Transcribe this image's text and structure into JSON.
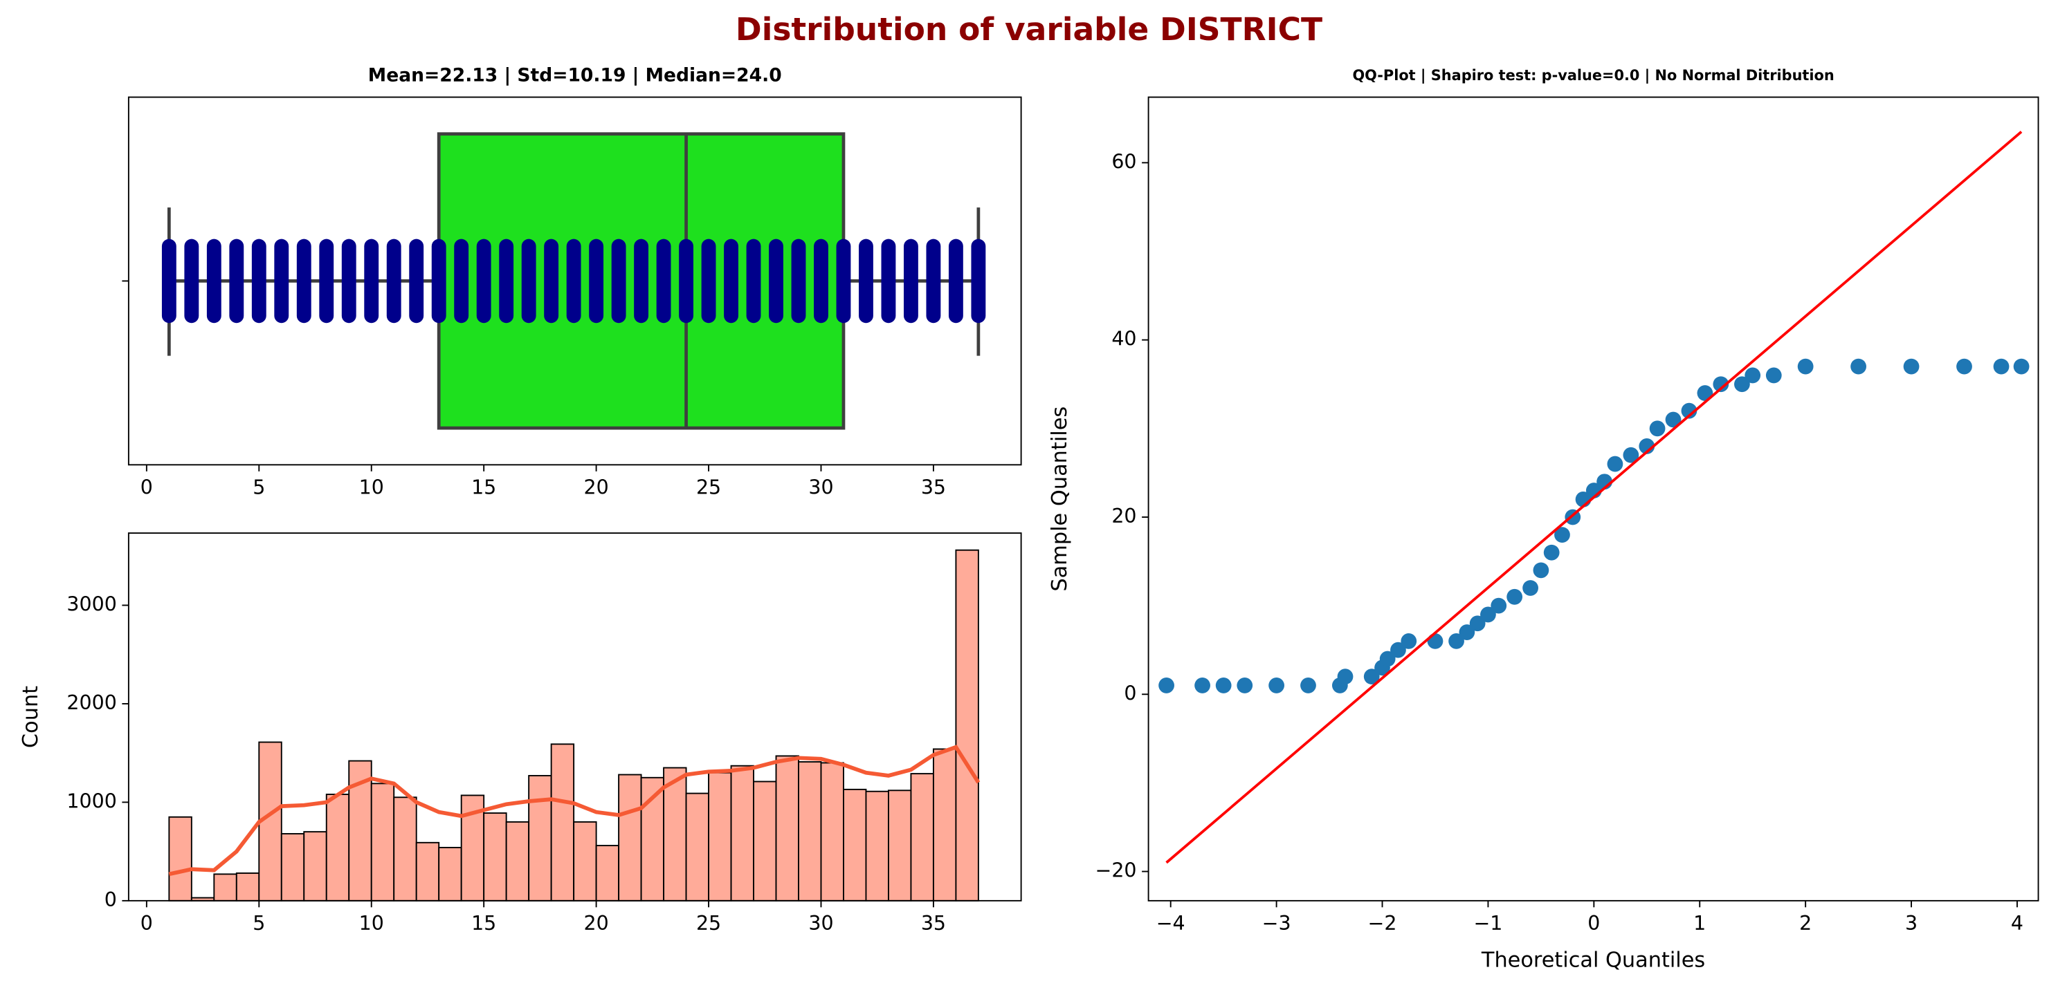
{
  "title": "Distribution of variable DISTRICT",
  "chart_data": [
    {
      "type": "box",
      "title": "Mean=22.13 | Std=10.19 | Median=24.0",
      "stats": {
        "whislo": 1,
        "q1": 13,
        "med": 24,
        "q3": 31,
        "whishi": 37
      },
      "points": [
        1,
        2,
        3,
        4,
        5,
        6,
        7,
        8,
        9,
        10,
        11,
        12,
        13,
        14,
        15,
        16,
        17,
        18,
        19,
        20,
        21,
        22,
        23,
        24,
        25,
        26,
        27,
        28,
        29,
        30,
        31,
        32,
        33,
        34,
        35,
        36,
        37
      ],
      "color": "#1ee01e",
      "point_color": "#00008b",
      "xlim": [
        -0.8,
        38.9
      ],
      "xticks": [
        0,
        5,
        10,
        15,
        20,
        25,
        30,
        35
      ]
    },
    {
      "type": "histogram",
      "y_label": "Count",
      "bins": [
        1,
        2,
        3,
        4,
        5,
        6,
        7,
        8,
        9,
        10,
        11,
        12,
        13,
        14,
        15,
        16,
        17,
        18,
        19,
        20,
        21,
        22,
        23,
        24,
        25,
        26,
        27,
        28,
        29,
        30,
        31,
        32,
        33,
        34,
        35,
        36,
        37
      ],
      "counts": [
        850,
        30,
        270,
        280,
        1610,
        680,
        700,
        1080,
        1420,
        1190,
        1050,
        590,
        540,
        1070,
        890,
        800,
        1270,
        1590,
        800,
        560,
        1280,
        1250,
        1350,
        1090,
        1300,
        1370,
        1210,
        1470,
        1410,
        1400,
        1130,
        1110,
        1120,
        1290,
        1540,
        3560
      ],
      "color": "#ffab99",
      "kde": {
        "x": [
          1,
          2,
          3,
          4,
          5,
          6,
          7,
          8,
          9,
          10,
          11,
          12,
          13,
          14,
          15,
          16,
          17,
          18,
          19,
          20,
          21,
          22,
          23,
          24,
          25,
          26,
          27,
          28,
          29,
          30,
          31,
          32,
          33,
          34,
          35,
          36,
          37
        ],
        "values": [
          270,
          320,
          310,
          500,
          800,
          960,
          970,
          1000,
          1150,
          1240,
          1190,
          1000,
          900,
          860,
          920,
          980,
          1010,
          1030,
          990,
          900,
          870,
          940,
          1150,
          1280,
          1310,
          1320,
          1350,
          1410,
          1450,
          1440,
          1380,
          1300,
          1270,
          1330,
          1480,
          1560,
          1200
        ],
        "color": "#f55a34"
      },
      "xlim": [
        -0.8,
        38.9
      ],
      "xticks": [
        0,
        5,
        10,
        15,
        20,
        25,
        30,
        35
      ],
      "ylim": [
        0,
        3733
      ],
      "yticks": [
        0,
        1000,
        2000,
        3000
      ]
    },
    {
      "type": "scatter",
      "title": "QQ-Plot | Shapiro test: p-value=0.0 | No Normal Ditribution",
      "x_label": "Theoretical Quantiles",
      "y_label": "Sample Quantiles",
      "x": [
        -4.04,
        -3.7,
        -3.5,
        -3.3,
        -3.0,
        -2.7,
        -2.4,
        -2.35,
        -2.1,
        -2.0,
        -1.95,
        -1.85,
        -1.75,
        -1.5,
        -1.3,
        -1.2,
        -1.1,
        -1.0,
        -0.9,
        -0.75,
        -0.6,
        -0.5,
        -0.4,
        -0.3,
        -0.2,
        -0.1,
        0,
        0.1,
        0.2,
        0.35,
        0.5,
        0.6,
        0.75,
        0.9,
        1.05,
        1.2,
        1.4,
        1.5,
        1.7,
        2,
        2.5,
        3,
        3.5,
        3.85,
        4.04
      ],
      "values": [
        1,
        1,
        1,
        1,
        1,
        1,
        1,
        2,
        2,
        3,
        4,
        5,
        6,
        6,
        6,
        7,
        8,
        9,
        10,
        11,
        12,
        14,
        16,
        18,
        20,
        22,
        23,
        24,
        26,
        27,
        28,
        30,
        31,
        32,
        34,
        35,
        35,
        36,
        36,
        37,
        37,
        37,
        37,
        37,
        37
      ],
      "color": "#1f77b4",
      "line": {
        "x": [
          -4.04,
          4.04
        ],
        "values": [
          -19,
          63.5
        ],
        "color": "#ff0000"
      },
      "xlim": [
        -4.21,
        4.2
      ],
      "xticks": [
        {
          "value": -4,
          "label": "−4"
        },
        {
          "value": -3,
          "label": "−3"
        },
        {
          "value": -2,
          "label": "−2"
        },
        {
          "value": -1,
          "label": "−1"
        },
        0,
        1,
        2,
        3,
        4
      ],
      "ylim": [
        -23.3,
        67.4
      ],
      "yticks": [
        {
          "value": -20,
          "label": "−20"
        },
        0,
        20,
        40,
        60
      ]
    }
  ]
}
